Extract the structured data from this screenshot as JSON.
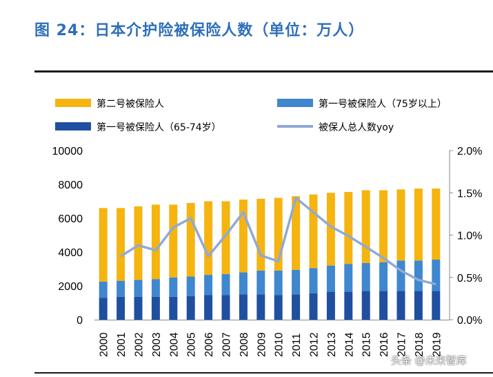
{
  "title": "图 24：日本介护险被保险人数（单位：万人）",
  "watermark": "头条 @未来智库",
  "colors": {
    "second_insured": "#f5b40f",
    "first_75plus": "#3f87cf",
    "first_65_74": "#1f4fa0",
    "yoy_line": "#8fa9d8",
    "title": "#2e6fba"
  },
  "chart_data": {
    "type": "bar",
    "stacked": true,
    "title": "日本介护险被保险人数（单位：万人）",
    "xlabel": "",
    "ylabel": "",
    "categories": [
      "2000",
      "2001",
      "2002",
      "2003",
      "2004",
      "2005",
      "2006",
      "2007",
      "2008",
      "2009",
      "2010",
      "2011",
      "2012",
      "2013",
      "2014",
      "2015",
      "2016",
      "2017",
      "2018",
      "2019"
    ],
    "series": [
      {
        "name": "第一号被保险人（65-74岁）",
        "type": "bar",
        "axis": "left",
        "color": "#1f4fa0",
        "values": [
          1300,
          1350,
          1350,
          1350,
          1350,
          1400,
          1450,
          1450,
          1500,
          1500,
          1450,
          1500,
          1550,
          1650,
          1650,
          1700,
          1700,
          1700,
          1700,
          1700
        ]
      },
      {
        "name": "第一号被保险人（75岁以上）",
        "type": "bar",
        "axis": "left",
        "color": "#3f87cf",
        "values": [
          950,
          950,
          1000,
          1050,
          1150,
          1150,
          1200,
          1250,
          1300,
          1400,
          1450,
          1450,
          1500,
          1550,
          1650,
          1650,
          1700,
          1800,
          1800,
          1850
        ]
      },
      {
        "name": "第二号被保险人",
        "type": "bar",
        "axis": "left",
        "color": "#f5b40f",
        "values": [
          4350,
          4300,
          4350,
          4400,
          4300,
          4350,
          4350,
          4300,
          4300,
          4250,
          4300,
          4350,
          4350,
          4300,
          4250,
          4300,
          4250,
          4200,
          4250,
          4200
        ]
      },
      {
        "name": "被保人总人数yoy",
        "type": "line",
        "axis": "right",
        "color": "#8fa9d8",
        "values": [
          null,
          0.75,
          0.88,
          0.82,
          1.09,
          1.2,
          0.75,
          1.0,
          1.27,
          0.76,
          0.69,
          1.44,
          1.27,
          1.1,
          0.99,
          0.86,
          0.73,
          0.58,
          0.47,
          0.42
        ]
      }
    ],
    "y_left": {
      "min": 0,
      "max": 10000,
      "ticks": [
        "0",
        "2000",
        "4000",
        "6000",
        "8000",
        "10000"
      ]
    },
    "y_right": {
      "min": 0,
      "max": 2.0,
      "unit": "%",
      "ticks": [
        "0.0%",
        "0.5%",
        "1.0%",
        "1.5%",
        "2.0%"
      ]
    },
    "legend": {
      "placement": "top",
      "items": [
        {
          "label": "第二号被保险人",
          "kind": "bar",
          "color": "#f5b40f"
        },
        {
          "label": "第一号被保险人（75岁以上）",
          "kind": "bar",
          "color": "#3f87cf"
        },
        {
          "label": "第一号被保险人（65-74岁）",
          "kind": "bar",
          "color": "#1f4fa0"
        },
        {
          "label": "被保人总人数yoy",
          "kind": "line",
          "color": "#8fa9d8"
        }
      ]
    },
    "grid": false
  }
}
